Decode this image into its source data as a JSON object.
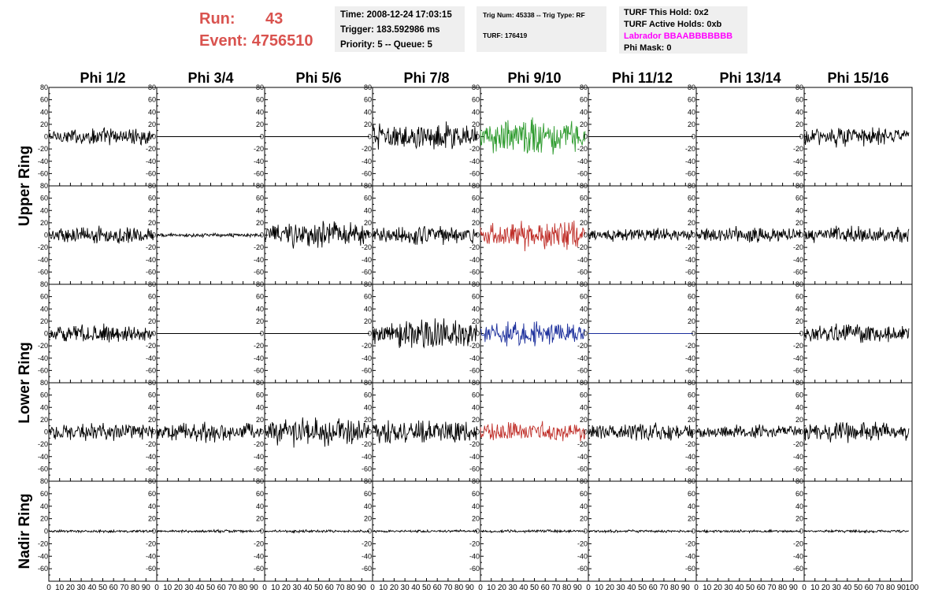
{
  "header": {
    "run_label": "Run:",
    "run_value": "43",
    "event_label": "Event:",
    "event_value": "4756510",
    "time": "Time: 2008-12-24 17:03:15",
    "trigger": "Trigger: 183.592986 ms",
    "priority": "Priority: 5 -- Queue: 5",
    "trig_num": "Trig Num: 45338 -- Trig Type: RF",
    "turf": "TURF: 176419",
    "turf_hold": "TURF This Hold: 0x2",
    "turf_active": "TURF Active Holds: 0xb",
    "labrador": "Labrador BBAABBBBBBB",
    "phi_mask": "Phi Mask: 0"
  },
  "colors": {
    "run_text": "#d9534f",
    "labrador_text": "#ff00ff",
    "trace_default": "#000000",
    "trace_green": "#2e9b2e",
    "trace_red": "#c0302a",
    "trace_blue": "#1c2f9c"
  },
  "chart_data": {
    "type": "line",
    "columns": [
      "Phi 1/2",
      "Phi 3/4",
      "Phi 5/6",
      "Phi 7/8",
      "Phi 9/10",
      "Phi 11/12",
      "Phi 13/14",
      "Phi 15/16"
    ],
    "ring_labels": [
      {
        "label": "Upper Ring",
        "rows": [
          0,
          1
        ]
      },
      {
        "label": "Lower Ring",
        "rows": [
          2,
          3
        ]
      },
      {
        "label": "Nadir Ring",
        "rows": [
          4
        ]
      }
    ],
    "xlim": [
      0,
      100
    ],
    "ylim": [
      -80,
      80
    ],
    "x_ticks": [
      0,
      10,
      20,
      30,
      40,
      50,
      60,
      70,
      80,
      90,
      100
    ],
    "y_ticks": [
      -80,
      -60,
      -40,
      -20,
      0,
      20,
      40,
      60,
      80
    ],
    "samples_per_trace": 180,
    "traces": [
      [
        {
          "amp": 13,
          "color": "#000000"
        },
        {
          "amp": 0,
          "color": "#000000"
        },
        {
          "amp": 0,
          "color": "#000000"
        },
        {
          "amp": 22,
          "color": "#000000"
        },
        {
          "amp": 26,
          "color": "#2e9b2e"
        },
        {
          "amp": 0,
          "color": "#000000"
        },
        {
          "amp": 0,
          "color": "#000000"
        },
        {
          "amp": 15,
          "color": "#000000"
        }
      ],
      [
        {
          "amp": 13,
          "color": "#000000"
        },
        {
          "amp": 3,
          "color": "#000000"
        },
        {
          "amp": 20,
          "color": "#000000"
        },
        {
          "amp": 15,
          "color": "#000000"
        },
        {
          "amp": 22,
          "color": "#c0302a"
        },
        {
          "amp": 10,
          "color": "#000000"
        },
        {
          "amp": 12,
          "color": "#000000"
        },
        {
          "amp": 13,
          "color": "#000000"
        }
      ],
      [
        {
          "amp": 13,
          "color": "#000000"
        },
        {
          "amp": 0,
          "color": "#000000"
        },
        {
          "amp": 0,
          "color": "#000000"
        },
        {
          "amp": 22,
          "color": "#000000"
        },
        {
          "amp": 18,
          "color": "#1c2f9c"
        },
        {
          "amp": 0,
          "color": "#1c2f9c"
        },
        {
          "amp": 0,
          "color": "#000000"
        },
        {
          "amp": 15,
          "color": "#000000"
        }
      ],
      [
        {
          "amp": 13,
          "color": "#000000"
        },
        {
          "amp": 15,
          "color": "#000000"
        },
        {
          "amp": 22,
          "color": "#000000"
        },
        {
          "amp": 18,
          "color": "#000000"
        },
        {
          "amp": 15,
          "color": "#c0302a"
        },
        {
          "amp": 13,
          "color": "#000000"
        },
        {
          "amp": 10,
          "color": "#000000"
        },
        {
          "amp": 15,
          "color": "#000000"
        }
      ],
      [
        {
          "amp": 2,
          "color": "#000000"
        },
        {
          "amp": 2,
          "color": "#000000"
        },
        {
          "amp": 2,
          "color": "#000000"
        },
        {
          "amp": 2,
          "color": "#000000"
        },
        {
          "amp": 2,
          "color": "#000000"
        },
        {
          "amp": 2,
          "color": "#000000"
        },
        {
          "amp": 2,
          "color": "#000000"
        },
        {
          "amp": 2,
          "color": "#000000"
        }
      ]
    ]
  }
}
